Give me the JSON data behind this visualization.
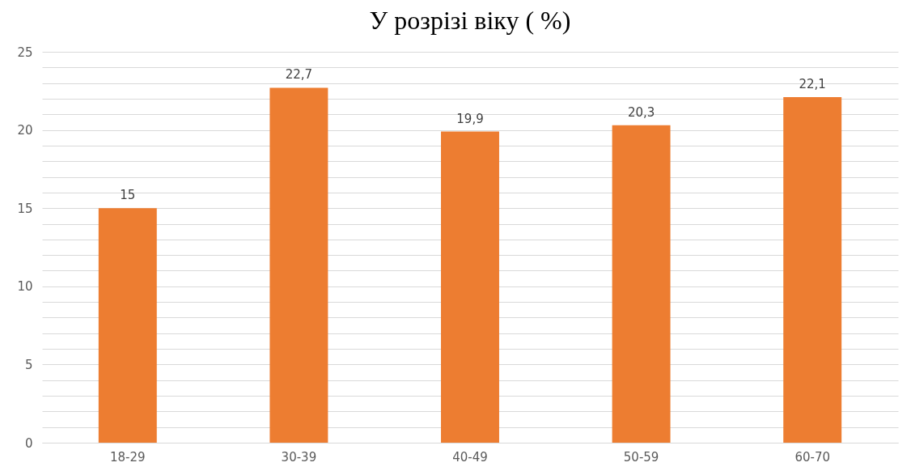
{
  "chart_data": {
    "type": "bar",
    "title": "У розрізі віку ( %)",
    "categories": [
      "18-29",
      "30-39",
      "40-49",
      "50-59",
      "60-70"
    ],
    "values": [
      15,
      22.7,
      19.9,
      20.3,
      22.1
    ],
    "value_labels": [
      "15",
      "22,7",
      "19,9",
      "20,3",
      "22,1"
    ],
    "color": "#ed7d31",
    "ylim": [
      0,
      25
    ],
    "yticks": [
      0,
      {
        "value": 1,
        "label": null
      },
      {
        "value": 2,
        "label": null
      },
      {
        "value": 3,
        "label": null
      },
      {
        "value": 4,
        "label": null
      },
      5,
      {
        "value": 6,
        "label": null
      },
      {
        "value": 7,
        "label": null
      },
      {
        "value": 8,
        "label": null
      },
      {
        "value": 9,
        "label": null
      },
      10,
      {
        "value": 11,
        "label": null
      },
      {
        "value": 12,
        "label": null
      },
      {
        "value": 13,
        "label": null
      },
      {
        "value": 14,
        "label": null
      },
      15,
      {
        "value": 16,
        "label": null
      },
      {
        "value": 17,
        "label": null
      },
      {
        "value": 18,
        "label": null
      },
      {
        "value": 19,
        "label": null
      },
      20,
      {
        "value": 21,
        "label": null
      },
      {
        "value": 22,
        "label": null
      },
      {
        "value": 23,
        "label": null
      },
      {
        "value": 24,
        "label": null
      },
      25
    ],
    "grid": "y"
  }
}
